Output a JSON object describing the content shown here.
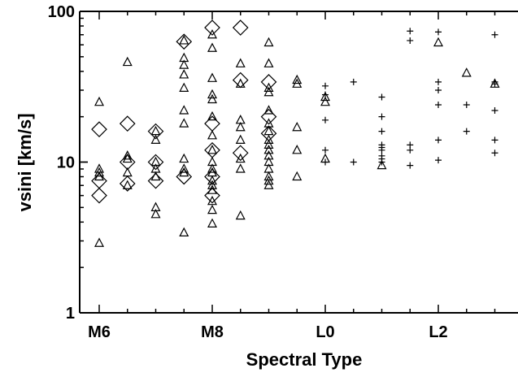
{
  "chart_data": {
    "type": "scatter",
    "title": "",
    "xlabel": "Spectral Type",
    "ylabel": "vsini [km/s]",
    "x_ticks": [
      {
        "value": 0,
        "label": "M6"
      },
      {
        "value": 2,
        "label": "M8"
      },
      {
        "value": 4,
        "label": "L0"
      },
      {
        "value": 6,
        "label": "L2"
      }
    ],
    "y_ticks": [
      {
        "value": 1,
        "label": "1"
      },
      {
        "value": 10,
        "label": "10"
      },
      {
        "value": 100,
        "label": "100"
      }
    ],
    "xlim": [
      "M5.7",
      "L3.7"
    ],
    "ylim": [
      1,
      100
    ],
    "y_scale": "log",
    "grid": false,
    "series": [
      {
        "marker": "triangle",
        "points": [
          [
            "M6",
            25
          ],
          [
            "M6",
            9
          ],
          [
            "M6",
            8.5
          ],
          [
            "M6",
            8
          ],
          [
            "M6",
            2.9
          ],
          [
            "M6.5",
            46
          ],
          [
            "M6.5",
            11
          ],
          [
            "M6.5",
            10.5
          ],
          [
            "M6.5",
            8.5
          ],
          [
            "M6.5",
            7
          ],
          [
            "M7",
            16
          ],
          [
            "M7",
            14
          ],
          [
            "M7",
            10
          ],
          [
            "M7",
            9
          ],
          [
            "M7",
            8
          ],
          [
            "M7",
            5
          ],
          [
            "M7",
            4.5
          ],
          [
            "M7.5",
            64
          ],
          [
            "M7.5",
            49
          ],
          [
            "M7.5",
            44
          ],
          [
            "M7.5",
            38
          ],
          [
            "M7.5",
            31
          ],
          [
            "M7.5",
            22
          ],
          [
            "M7.5",
            18
          ],
          [
            "M7.5",
            10.5
          ],
          [
            "M7.5",
            9
          ],
          [
            "M7.5",
            8.5
          ],
          [
            "M7.5",
            3.4
          ],
          [
            "M8",
            70
          ],
          [
            "M8",
            57
          ],
          [
            "M8",
            36
          ],
          [
            "M8",
            28
          ],
          [
            "M8",
            26
          ],
          [
            "M8",
            20
          ],
          [
            "M8",
            15
          ],
          [
            "M8",
            12
          ],
          [
            "M8",
            10
          ],
          [
            "M8",
            9
          ],
          [
            "M8",
            8.5
          ],
          [
            "M8",
            7.5
          ],
          [
            "M8",
            7
          ],
          [
            "M8",
            6.5
          ],
          [
            "M8",
            5.5
          ],
          [
            "M8",
            4.8
          ],
          [
            "M8",
            3.9
          ],
          [
            "M8.5",
            45
          ],
          [
            "M8.5",
            33
          ],
          [
            "M8.5",
            19
          ],
          [
            "M8.5",
            17
          ],
          [
            "M8.5",
            14
          ],
          [
            "M8.5",
            10.5
          ],
          [
            "M8.5",
            9
          ],
          [
            "M8.5",
            4.4
          ],
          [
            "M9",
            62
          ],
          [
            "M9",
            45
          ],
          [
            "M9",
            31
          ],
          [
            "M9",
            29
          ],
          [
            "M9",
            22
          ],
          [
            "M9",
            18
          ],
          [
            "M9",
            16
          ],
          [
            "M9",
            14
          ],
          [
            "M9",
            13
          ],
          [
            "M9",
            12
          ],
          [
            "M9",
            11
          ],
          [
            "M9",
            10
          ],
          [
            "M9",
            9
          ],
          [
            "M9",
            8
          ],
          [
            "M9",
            7.5
          ],
          [
            "M9",
            7
          ],
          [
            "M9.5",
            35
          ],
          [
            "M9.5",
            33
          ],
          [
            "M9.5",
            17
          ],
          [
            "M9.5",
            12
          ],
          [
            "M9.5",
            8
          ],
          [
            "L0",
            27
          ],
          [
            "L0",
            25
          ],
          [
            "L0",
            10.5
          ],
          [
            "L1",
            9.5
          ],
          [
            "L2",
            62
          ],
          [
            "L2.5",
            39
          ],
          [
            "L3",
            33
          ]
        ]
      },
      {
        "marker": "diamond",
        "points": [
          [
            "M6",
            16.5
          ],
          [
            "M6",
            7.5
          ],
          [
            "M6",
            6
          ],
          [
            "M6.5",
            18
          ],
          [
            "M6.5",
            10
          ],
          [
            "M6.5",
            7.2
          ],
          [
            "M7",
            16
          ],
          [
            "M7",
            10
          ],
          [
            "M7",
            7.5
          ],
          [
            "M7.5",
            63
          ],
          [
            "M7.5",
            8
          ],
          [
            "M8",
            78
          ],
          [
            "M8",
            18
          ],
          [
            "M8",
            12
          ],
          [
            "M8",
            8
          ],
          [
            "M8",
            6
          ],
          [
            "M8.5",
            78
          ],
          [
            "M8.5",
            35
          ],
          [
            "M8.5",
            11.5
          ],
          [
            "M9",
            34
          ],
          [
            "M9",
            20
          ],
          [
            "M9",
            15.5
          ]
        ]
      },
      {
        "marker": "plus",
        "points": [
          [
            "L0",
            32
          ],
          [
            "L0",
            28
          ],
          [
            "L0",
            19
          ],
          [
            "L0",
            12
          ],
          [
            "L0",
            10
          ],
          [
            "L0.5",
            34
          ],
          [
            "L0.5",
            10
          ],
          [
            "L1",
            27
          ],
          [
            "L1",
            20
          ],
          [
            "L1",
            16
          ],
          [
            "L1",
            13
          ],
          [
            "L1",
            12.5
          ],
          [
            "L1",
            12
          ],
          [
            "L1",
            11
          ],
          [
            "L1",
            10.5
          ],
          [
            "L1",
            10
          ],
          [
            "L1.5",
            74
          ],
          [
            "L1.5",
            64
          ],
          [
            "L1.5",
            13
          ],
          [
            "L1.5",
            12
          ],
          [
            "L1.5",
            9.5
          ],
          [
            "L2",
            73
          ],
          [
            "L2",
            34
          ],
          [
            "L2",
            30
          ],
          [
            "L2",
            24
          ],
          [
            "L2",
            14
          ],
          [
            "L2",
            10.3
          ],
          [
            "L2.5",
            24
          ],
          [
            "L2.5",
            16
          ],
          [
            "L3",
            70
          ],
          [
            "L3",
            34
          ],
          [
            "L3",
            33
          ],
          [
            "L3",
            22
          ],
          [
            "L3",
            14
          ],
          [
            "L3",
            11.5
          ]
        ]
      }
    ]
  }
}
